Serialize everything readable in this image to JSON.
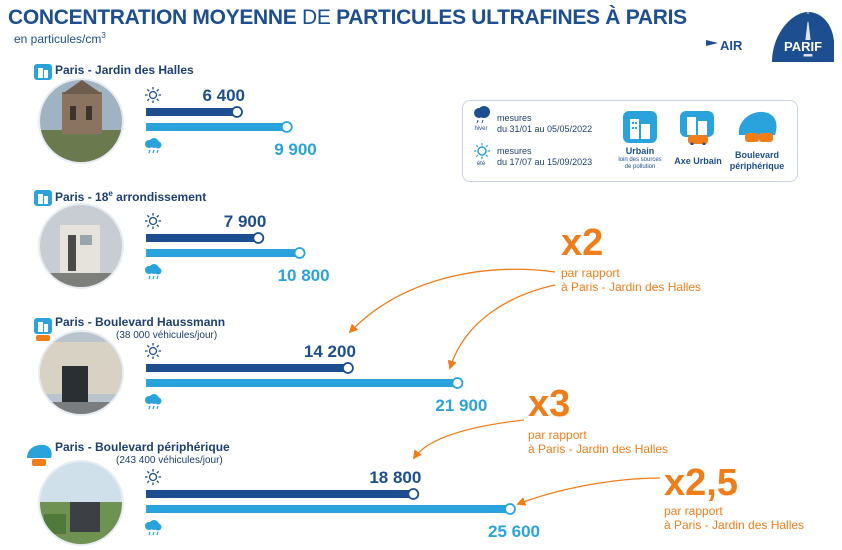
{
  "header": {
    "title_part1": "CONCENTRATION MOYENNE",
    "title_part2": "DE",
    "title_part3": "PARTICULES ULTRAFINES",
    "title_part4": "À PARIS",
    "subtitle": "en particules/cm",
    "subtitle_sup": "3"
  },
  "logo": {
    "text_left": "AIR",
    "text_right": "PARIF"
  },
  "legend": {
    "winter_label": "hiver",
    "winter_line1": "mesures",
    "winter_line2": "du 31/01 au 05/05/2022",
    "summer_label": "été",
    "summer_line1": "mesures",
    "summer_line2": "du 17/07 au 15/09/2023",
    "types": [
      {
        "label": "Urbain",
        "sub1": "loin des sources",
        "sub2": "de pollution"
      },
      {
        "label": "Axe Urbain"
      },
      {
        "label": "Boulevard",
        "label2": "périphérique"
      }
    ]
  },
  "sites": [
    {
      "name": "Paris - Jardin des Halles",
      "sub": "",
      "winter": "6 400",
      "summer": "9 900"
    },
    {
      "name": "Paris - 18",
      "sup": "e",
      "name_end": " arrondissement",
      "sub": "",
      "winter": "7 900",
      "summer": "10 800"
    },
    {
      "name": "Paris - Boulevard Haussmann",
      "sub": "(38 000 véhicules/jour)",
      "winter": "14 200",
      "summer": "21 900"
    },
    {
      "name": "Paris - Boulevard périphérique",
      "sub": "(243 400 véhicules/jour)",
      "winter": "18 800",
      "summer": "25 600"
    }
  ],
  "ratios": [
    {
      "x": "x2",
      "line1": "par rapport",
      "line2": "à Paris - Jardin des Halles"
    },
    {
      "x": "x3",
      "line1": "par rapport",
      "line2": "à Paris - Jardin des Halles"
    },
    {
      "x": "x2,5",
      "line1": "par rapport",
      "line2": "à Paris - Jardin des Halles"
    }
  ],
  "colors": {
    "winter": "#1d4e8f",
    "summer": "#2aa3dd",
    "accent": "#ef7d1a",
    "title": "#1d4e8f"
  },
  "chart_data": {
    "type": "bar",
    "orientation": "horizontal",
    "categories": [
      "Paris - Jardin des Halles",
      "Paris - 18e arrondissement",
      "Paris - Boulevard Haussmann",
      "Paris - Boulevard périphérique"
    ],
    "series": [
      {
        "name": "hiver",
        "values": [
          6400,
          7900,
          14200,
          18800
        ]
      },
      {
        "name": "été",
        "values": [
          9900,
          10800,
          21900,
          25600
        ]
      }
    ],
    "title": "CONCENTRATION MOYENNE DE PARTICULES ULTRAFINES À PARIS",
    "xlabel": "",
    "ylabel": "",
    "unit": "particules/cm3",
    "xlim": [
      0,
      25600
    ]
  }
}
